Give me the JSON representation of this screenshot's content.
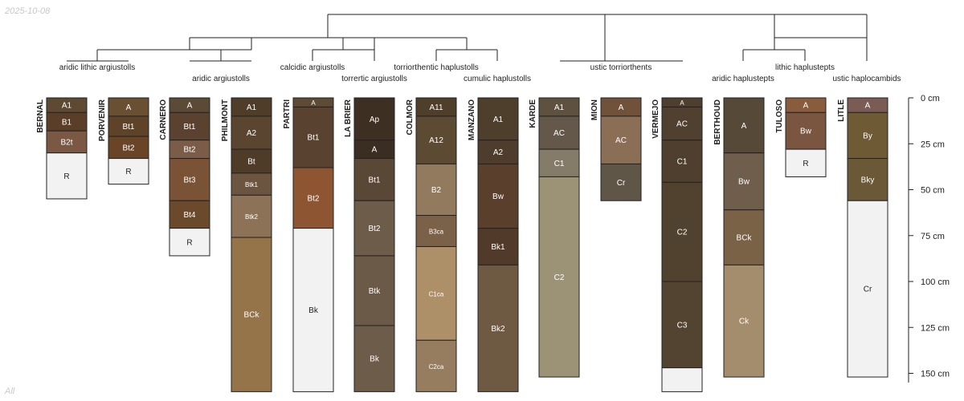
{
  "date_stamp": "2025-10-08",
  "corner_label": "All",
  "depth_axis": {
    "unit": "cm",
    "max_depth": 155,
    "ticks": [
      0,
      25,
      50,
      75,
      100,
      125,
      150
    ],
    "tick_labels": [
      "0 cm",
      "25 cm",
      "50 cm",
      "75 cm",
      "100 cm",
      "125 cm",
      "150 cm"
    ]
  },
  "colors": {
    "line": "#222222",
    "label_light": "#ffffff",
    "label_dark": "#222222"
  },
  "taxa": [
    {
      "name": "aridic lithic argiustolls",
      "tier": 0,
      "members": [
        0,
        1
      ]
    },
    {
      "name": "aridic argiustolls",
      "tier": 1,
      "members": [
        2,
        3
      ]
    },
    {
      "name": "calcidic argiustolls",
      "tier": 0,
      "members": [
        4
      ]
    },
    {
      "name": "torrertic argiustolls",
      "tier": 1,
      "members": [
        5
      ]
    },
    {
      "name": "torriorthentic haplustolls",
      "tier": 0,
      "members": [
        6
      ]
    },
    {
      "name": "cumulic haplustolls",
      "tier": 1,
      "members": [
        7
      ]
    },
    {
      "name": "ustic torriorthents",
      "tier": 0,
      "members": [
        8,
        9,
        10
      ]
    },
    {
      "name": "aridic haplustepts",
      "tier": 1,
      "members": [
        11
      ]
    },
    {
      "name": "lithic haplustepts",
      "tier": 0,
      "members": [
        12
      ]
    },
    {
      "name": "ustic haplocambids",
      "tier": 1,
      "members": [
        13
      ]
    }
  ],
  "profiles": [
    {
      "name": "BERNAL",
      "horizons": [
        {
          "name": "A1",
          "top": 0,
          "bottom": 8,
          "color": "#5e4a33"
        },
        {
          "name": "B1",
          "top": 8,
          "bottom": 18,
          "color": "#5a3e28"
        },
        {
          "name": "B2t",
          "top": 18,
          "bottom": 30,
          "color": "#7a5844"
        },
        {
          "name": "R",
          "top": 30,
          "bottom": 55,
          "color": "#f2f2f2"
        }
      ]
    },
    {
      "name": "PORVENIR",
      "horizons": [
        {
          "name": "A",
          "top": 0,
          "bottom": 10,
          "color": "#6a5032"
        },
        {
          "name": "Bt1",
          "top": 10,
          "bottom": 21,
          "color": "#5e4329"
        },
        {
          "name": "Bt2",
          "top": 21,
          "bottom": 33,
          "color": "#6a4426"
        },
        {
          "name": "R",
          "top": 33,
          "bottom": 47,
          "color": "#f2f2f2"
        }
      ]
    },
    {
      "name": "CARNERO",
      "horizons": [
        {
          "name": "A",
          "top": 0,
          "bottom": 8,
          "color": "#5b4a36"
        },
        {
          "name": "Bt1",
          "top": 8,
          "bottom": 23,
          "color": "#5b4130"
        },
        {
          "name": "Bt2",
          "top": 23,
          "bottom": 33,
          "color": "#7a5c48"
        },
        {
          "name": "Bt3",
          "top": 33,
          "bottom": 56,
          "color": "#7a5236"
        },
        {
          "name": "Bt4",
          "top": 56,
          "bottom": 71,
          "color": "#6b4a2c"
        },
        {
          "name": "R",
          "top": 71,
          "bottom": 86,
          "color": "#f2f2f2"
        }
      ]
    },
    {
      "name": "PHILMONT",
      "horizons": [
        {
          "name": "A1",
          "top": 0,
          "bottom": 10,
          "color": "#4f3d2a"
        },
        {
          "name": "A2",
          "top": 10,
          "bottom": 28,
          "color": "#5a4630"
        },
        {
          "name": "Bt",
          "top": 28,
          "bottom": 41,
          "color": "#4e3c28"
        },
        {
          "name": "Btk1",
          "top": 41,
          "bottom": 53,
          "color": "#6b5540"
        },
        {
          "name": "Btk2",
          "top": 53,
          "bottom": 76,
          "color": "#8c7358"
        },
        {
          "name": "BCk",
          "top": 76,
          "bottom": 160,
          "color": "#96744a"
        }
      ]
    },
    {
      "name": "PARTRI",
      "horizons": [
        {
          "name": "A",
          "top": 0,
          "bottom": 5,
          "color": "#5f4a36"
        },
        {
          "name": "Bt1",
          "top": 5,
          "bottom": 38,
          "color": "#5a4231"
        },
        {
          "name": "Bt2",
          "top": 38,
          "bottom": 71,
          "color": "#8e5532"
        },
        {
          "name": "Bk",
          "top": 71,
          "bottom": 160,
          "color": "#f2f2f2"
        }
      ]
    },
    {
      "name": "LA BRIER",
      "horizons": [
        {
          "name": "Ap",
          "top": 0,
          "bottom": 23,
          "color": "#3d2f22"
        },
        {
          "name": "A",
          "top": 23,
          "bottom": 33,
          "color": "#3a2d22"
        },
        {
          "name": "Bt1",
          "top": 33,
          "bottom": 56,
          "color": "#5a4836"
        },
        {
          "name": "Bt2",
          "top": 56,
          "bottom": 86,
          "color": "#6e5c4a"
        },
        {
          "name": "Btk",
          "top": 86,
          "bottom": 124,
          "color": "#6c5a48"
        },
        {
          "name": "Bk",
          "top": 124,
          "bottom": 160,
          "color": "#6e5c4a"
        }
      ]
    },
    {
      "name": "COLMOR",
      "horizons": [
        {
          "name": "A11",
          "top": 0,
          "bottom": 10,
          "color": "#4f3e29"
        },
        {
          "name": "A12",
          "top": 10,
          "bottom": 36,
          "color": "#5c4a33"
        },
        {
          "name": "B2",
          "top": 36,
          "bottom": 64,
          "color": "#917a5e"
        },
        {
          "name": "B3ca",
          "top": 64,
          "bottom": 81,
          "color": "#7a6148"
        },
        {
          "name": "C1ca",
          "top": 81,
          "bottom": 132,
          "color": "#ad9068"
        },
        {
          "name": "C2ca",
          "top": 132,
          "bottom": 160,
          "color": "#977d60"
        }
      ]
    },
    {
      "name": "MANZANO",
      "horizons": [
        {
          "name": "A1",
          "top": 0,
          "bottom": 23,
          "color": "#4e3e2c"
        },
        {
          "name": "A2",
          "top": 23,
          "bottom": 36,
          "color": "#4e3d2c"
        },
        {
          "name": "Bw",
          "top": 36,
          "bottom": 71,
          "color": "#5a402c"
        },
        {
          "name": "Bk1",
          "top": 71,
          "bottom": 91,
          "color": "#513a29"
        },
        {
          "name": "Bk2",
          "top": 91,
          "bottom": 160,
          "color": "#6e5a42"
        }
      ]
    },
    {
      "name": "KARDE",
      "horizons": [
        {
          "name": "A1",
          "top": 0,
          "bottom": 10,
          "color": "#5e5140"
        },
        {
          "name": "AC",
          "top": 10,
          "bottom": 28,
          "color": "#63584a"
        },
        {
          "name": "C1",
          "top": 28,
          "bottom": 43,
          "color": "#857b69"
        },
        {
          "name": "C2",
          "top": 43,
          "bottom": 152,
          "color": "#9c9377"
        }
      ]
    },
    {
      "name": "MION",
      "horizons": [
        {
          "name": "A",
          "top": 0,
          "bottom": 10,
          "color": "#6f5239"
        },
        {
          "name": "AC",
          "top": 10,
          "bottom": 36,
          "color": "#8a6e55"
        },
        {
          "name": "Cr",
          "top": 36,
          "bottom": 56,
          "color": "#5f5647"
        }
      ]
    },
    {
      "name": "VERMEJO",
      "horizons": [
        {
          "name": "A",
          "top": 0,
          "bottom": 5,
          "color": "#4e3f2f"
        },
        {
          "name": "AC",
          "top": 5,
          "bottom": 23,
          "color": "#4f4030"
        },
        {
          "name": "C1",
          "top": 23,
          "bottom": 46,
          "color": "#4e3f2f"
        },
        {
          "name": "C2",
          "top": 46,
          "bottom": 100,
          "color": "#514230"
        },
        {
          "name": "C3",
          "top": 100,
          "bottom": 147,
          "color": "#524431"
        },
        {
          "name": "",
          "top": 147,
          "bottom": 160,
          "color": "#f2f2f2"
        }
      ]
    },
    {
      "name": "BERTHOUD",
      "horizons": [
        {
          "name": "A",
          "top": 0,
          "bottom": 30,
          "color": "#574938"
        },
        {
          "name": "Bw",
          "top": 30,
          "bottom": 61,
          "color": "#6f5e4b"
        },
        {
          "name": "BCk",
          "top": 61,
          "bottom": 91,
          "color": "#7a6247"
        },
        {
          "name": "Ck",
          "top": 91,
          "bottom": 152,
          "color": "#a48d6c"
        }
      ]
    },
    {
      "name": "TULOSO",
      "horizons": [
        {
          "name": "A",
          "top": 0,
          "bottom": 8,
          "color": "#8a5c3e"
        },
        {
          "name": "Bw",
          "top": 8,
          "bottom": 28,
          "color": "#7a5540"
        },
        {
          "name": "R",
          "top": 28,
          "bottom": 43,
          "color": "#f2f2f2"
        }
      ]
    },
    {
      "name": "LITLE",
      "horizons": [
        {
          "name": "A",
          "top": 0,
          "bottom": 8,
          "color": "#7a5c55"
        },
        {
          "name": "By",
          "top": 8,
          "bottom": 33,
          "color": "#6e5b36"
        },
        {
          "name": "Bky",
          "top": 33,
          "bottom": 56,
          "color": "#6b5836"
        },
        {
          "name": "Cr",
          "top": 56,
          "bottom": 152,
          "color": "#f2f2f2"
        }
      ]
    }
  ]
}
